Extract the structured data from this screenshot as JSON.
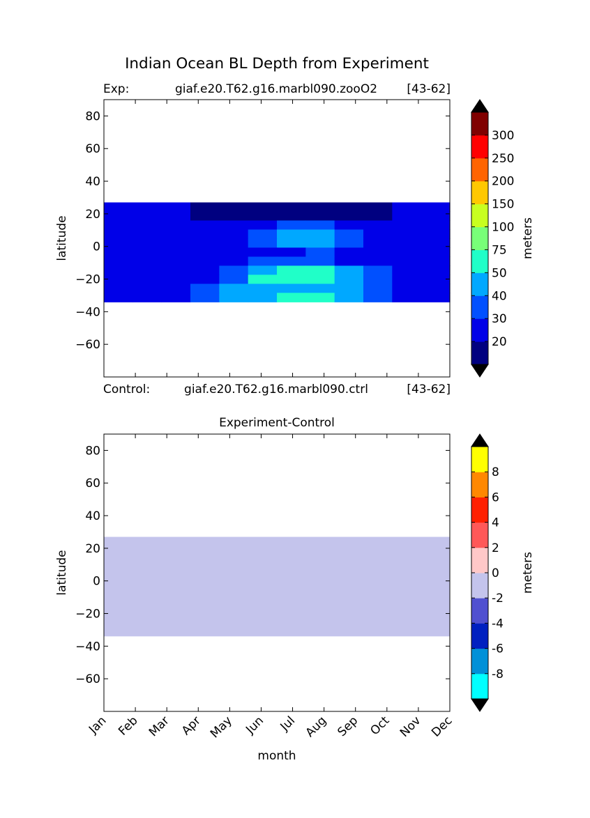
{
  "figure": {
    "suptitle": "Indian Ocean BL Depth from Experiment"
  },
  "top_panel": {
    "exp_label": "Exp:",
    "exp_case": "giaf.e20.T62.g16.marbl090.zooO2",
    "exp_years": "[43-62]",
    "ctrl_label": "Control:",
    "ctrl_case": "giaf.e20.T62.g16.marbl090.ctrl",
    "ctrl_years": "[43-62]"
  },
  "bottom_panel": {
    "title": "Experiment-Control"
  },
  "chart_data": [
    {
      "type": "heatmap",
      "title": "Indian Ocean BL Depth from Experiment",
      "xlabel": "",
      "ylabel": "latitude",
      "months": [
        "Jan",
        "Feb",
        "Mar",
        "Apr",
        "May",
        "Jun",
        "Jul",
        "Aug",
        "Sep",
        "Oct",
        "Nov",
        "Dec"
      ],
      "yticks": [
        80,
        60,
        40,
        20,
        0,
        -20,
        -40,
        -60
      ],
      "ylim": [
        -80,
        90
      ],
      "data_lat_range": [
        -34,
        27
      ],
      "colorbar": {
        "label": "meters",
        "levels": [
          10,
          20,
          30,
          40,
          50,
          75,
          100,
          150,
          200,
          250,
          300,
          350
        ],
        "tick_labels": [
          "20",
          "30",
          "40",
          "50",
          "75",
          "100",
          "150",
          "200",
          "250",
          "300"
        ],
        "colors": [
          "#000080",
          "#0000e8",
          "#0050ff",
          "#00a8ff",
          "#20ffc8",
          "#78ff78",
          "#c8ff20",
          "#ffc800",
          "#ff6400",
          "#ff0000",
          "#800000"
        ],
        "extend_colors": [
          "#000000",
          "#000000"
        ]
      },
      "field_description_levels_by_month_lat": {
        "note_lat_bands": [
          27,
          21,
          15,
          9,
          3,
          -3,
          -9,
          -15,
          -21,
          -27,
          -33
        ],
        "values": [
          [
            20,
            20,
            20,
            15,
            15,
            15,
            15,
            15,
            15,
            15,
            20,
            20
          ],
          [
            25,
            25,
            20,
            15,
            15,
            15,
            15,
            15,
            15,
            15,
            20,
            25
          ],
          [
            25,
            25,
            25,
            20,
            20,
            25,
            35,
            35,
            25,
            20,
            25,
            25
          ],
          [
            25,
            25,
            25,
            25,
            25,
            35,
            45,
            45,
            35,
            25,
            25,
            25
          ],
          [
            25,
            25,
            25,
            25,
            25,
            35,
            40,
            40,
            35,
            25,
            25,
            25
          ],
          [
            25,
            25,
            25,
            20,
            25,
            25,
            25,
            30,
            25,
            25,
            25,
            25
          ],
          [
            25,
            25,
            25,
            25,
            25,
            35,
            35,
            35,
            25,
            25,
            25,
            25
          ],
          [
            25,
            25,
            25,
            25,
            35,
            45,
            55,
            55,
            45,
            35,
            25,
            25
          ],
          [
            25,
            25,
            25,
            25,
            35,
            55,
            55,
            55,
            45,
            35,
            25,
            25
          ],
          [
            25,
            25,
            25,
            35,
            45,
            45,
            45,
            45,
            45,
            35,
            25,
            25
          ],
          [
            25,
            25,
            25,
            35,
            45,
            45,
            55,
            55,
            45,
            35,
            25,
            25
          ]
        ]
      }
    },
    {
      "type": "heatmap",
      "title": "Experiment-Control",
      "xlabel": "month",
      "ylabel": "latitude",
      "months": [
        "Jan",
        "Feb",
        "Mar",
        "Apr",
        "May",
        "Jun",
        "Jul",
        "Aug",
        "Sep",
        "Oct",
        "Nov",
        "Dec"
      ],
      "yticks": [
        80,
        60,
        40,
        20,
        0,
        -20,
        -40,
        -60
      ],
      "ylim": [
        -80,
        90
      ],
      "data_lat_range": [
        -34,
        27
      ],
      "uniform_value_bin": [
        -2,
        0
      ],
      "colorbar": {
        "label": "meters",
        "levels": [
          -10,
          -8,
          -6,
          -4,
          -2,
          0,
          2,
          4,
          6,
          8,
          10
        ],
        "tick_labels": [
          "-8",
          "-6",
          "-4",
          "-2",
          "0",
          "2",
          "4",
          "6",
          "8"
        ],
        "colors": [
          "#00ffff",
          "#0090d8",
          "#0020c0",
          "#5050d0",
          "#c4c4ec",
          "#ffc8c8",
          "#ff5858",
          "#ff2000",
          "#ff8800",
          "#ffff00"
        ],
        "extend_colors": [
          "#000000",
          "#000000"
        ]
      }
    }
  ]
}
